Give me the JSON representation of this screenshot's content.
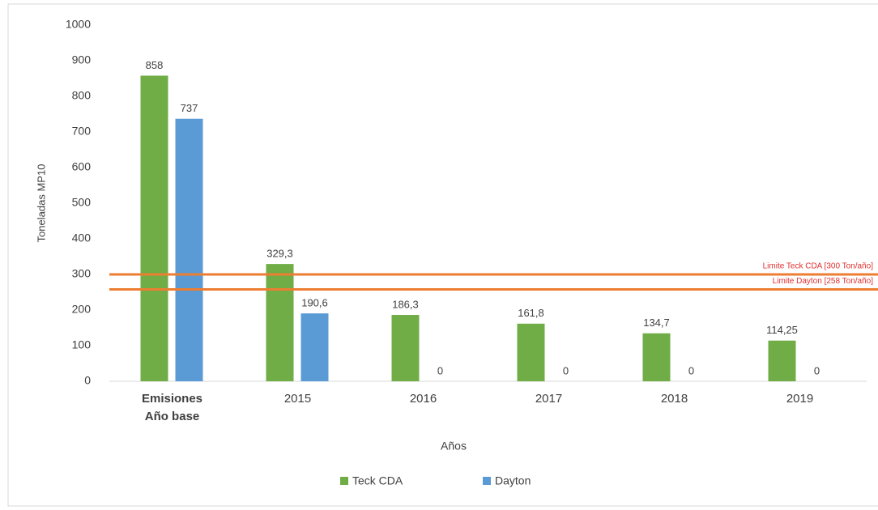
{
  "chart_data": {
    "type": "bar",
    "y_label": "Toneladas MP10",
    "x_label": "Años",
    "categories": [
      "Emisiones Año base",
      "2015",
      "2016",
      "2017",
      "2018",
      "2019"
    ],
    "series": [
      {
        "name": "Teck CDA",
        "color": "#70ad47",
        "values": [
          858,
          329.3,
          186.3,
          161.8,
          134.7,
          114.25
        ],
        "value_labels": [
          "858",
          "329,3",
          "186,3",
          "161,8",
          "134,7",
          "114,25"
        ]
      },
      {
        "name": "Dayton",
        "color": "#5b9bd5",
        "values": [
          737,
          190.6,
          0,
          0,
          0,
          0
        ],
        "value_labels": [
          "737",
          "190,6",
          "0",
          "0",
          "0",
          "0"
        ]
      }
    ],
    "reference_lines": [
      {
        "value": 300,
        "label": "Limite Teck CDA [300 Ton/año]",
        "color": "#ed7d31"
      },
      {
        "value": 258,
        "label": "Limite Dayton [258 Ton/año]",
        "color": "#ed7d31"
      }
    ],
    "ylim": [
      0,
      1000
    ],
    "yticks": [
      0,
      100,
      200,
      300,
      400,
      500,
      600,
      700,
      800,
      900,
      1000
    ],
    "grid": false,
    "legend": "bottom"
  }
}
